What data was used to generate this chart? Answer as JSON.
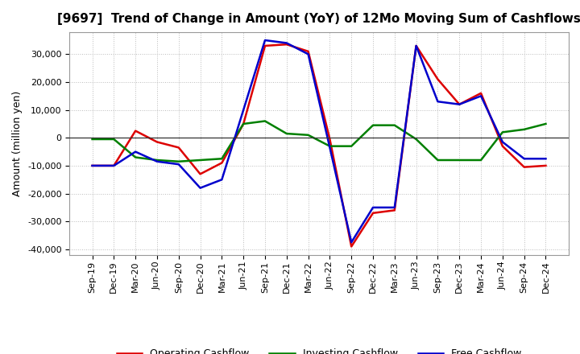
{
  "title": "[9697]  Trend of Change in Amount (YoY) of 12Mo Moving Sum of Cashflows",
  "ylabel": "Amount (million yen)",
  "x_labels": [
    "Sep-19",
    "Dec-19",
    "Mar-20",
    "Jun-20",
    "Sep-20",
    "Dec-20",
    "Mar-21",
    "Jun-21",
    "Sep-21",
    "Dec-21",
    "Mar-22",
    "Jun-22",
    "Sep-22",
    "Dec-22",
    "Mar-23",
    "Jun-23",
    "Sep-23",
    "Dec-23",
    "Mar-24",
    "Jun-24",
    "Sep-24",
    "Dec-24"
  ],
  "operating": [
    -10000,
    -10000,
    2500,
    -1500,
    -3500,
    -13000,
    -9000,
    5000,
    33000,
    33500,
    31000,
    -500,
    -39000,
    -27000,
    -26000,
    33000,
    21000,
    12000,
    16000,
    -3000,
    -10500,
    -10000
  ],
  "investing": [
    -500,
    -500,
    -7000,
    -8000,
    -8500,
    -8000,
    -7500,
    5000,
    6000,
    1500,
    1000,
    -3000,
    -3000,
    4500,
    4500,
    -500,
    -8000,
    -8000,
    -8000,
    2000,
    3000,
    5000
  ],
  "free": [
    -10000,
    -10000,
    -5000,
    -8500,
    -9500,
    -18000,
    -15000,
    10000,
    35000,
    34000,
    30000,
    -3500,
    -37500,
    -25000,
    -25000,
    33000,
    13000,
    12000,
    15000,
    -1500,
    -7500,
    -7500
  ],
  "operating_color": "#dd0000",
  "investing_color": "#008000",
  "free_color": "#0000cc",
  "ylim": [
    -42000,
    38000
  ],
  "yticks": [
    -40000,
    -30000,
    -20000,
    -10000,
    0,
    10000,
    20000,
    30000
  ],
  "background_color": "#ffffff",
  "grid_color": "#bbbbbb",
  "legend_labels": [
    "Operating Cashflow",
    "Investing Cashflow",
    "Free Cashflow"
  ],
  "title_fontsize": 11,
  "axis_label_fontsize": 9,
  "tick_fontsize": 8,
  "legend_fontsize": 9,
  "linewidth": 1.8
}
